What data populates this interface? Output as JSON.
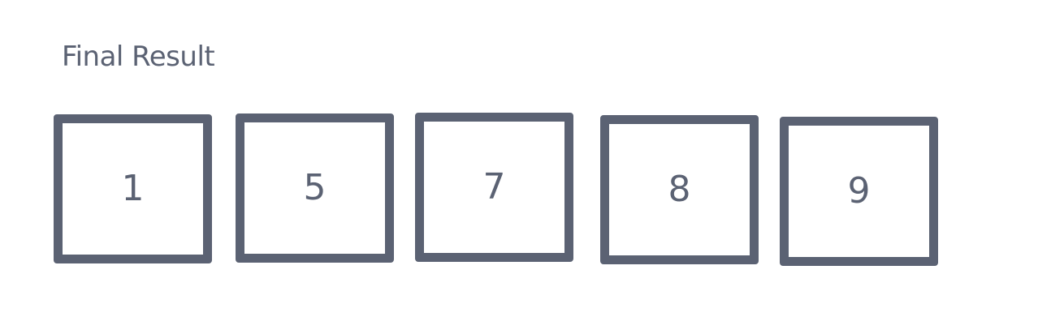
{
  "title": "Final Result",
  "values": [
    "1",
    "5",
    "7",
    "8",
    "9"
  ],
  "colors": {
    "stroke": "#5b6273",
    "text": "#5b6273",
    "background": "#ffffff"
  }
}
